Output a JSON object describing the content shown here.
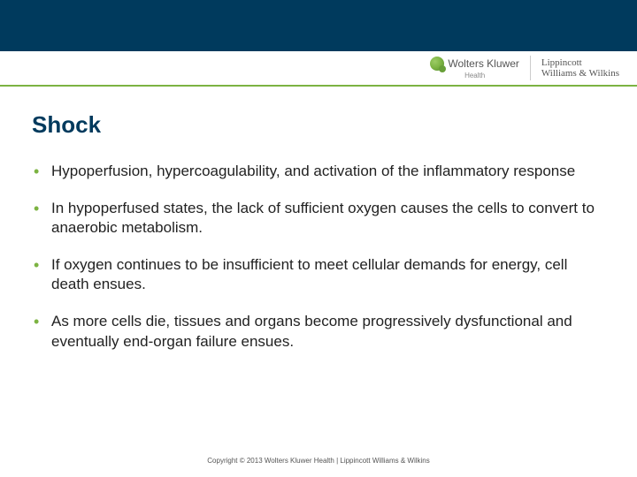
{
  "header": {
    "wk_name": "Wolters Kluwer",
    "wk_sub": "Health",
    "lww_line1": "Lippincott",
    "lww_line2": "Williams & Wilkins"
  },
  "slide": {
    "title": "Shock",
    "bullets": [
      "Hypoperfusion, hypercoagulability, and activation of the inflammatory response",
      "In hypoperfused states, the lack of sufficient oxygen causes the cells to convert to anaerobic metabolism.",
      "If oxygen continues to be insufficient to meet cellular demands for energy, cell death ensues.",
      "As more cells die, tissues and organs become progressively dysfunctional and eventually end-organ failure ensues."
    ]
  },
  "footer": {
    "copyright": "Copyright © 2013 Wolters Kluwer Health | Lippincott Williams & Wilkins"
  },
  "colors": {
    "header_bg": "#003a5d",
    "accent_green": "#7cb342",
    "title_color": "#003a5d",
    "text_color": "#222222"
  }
}
